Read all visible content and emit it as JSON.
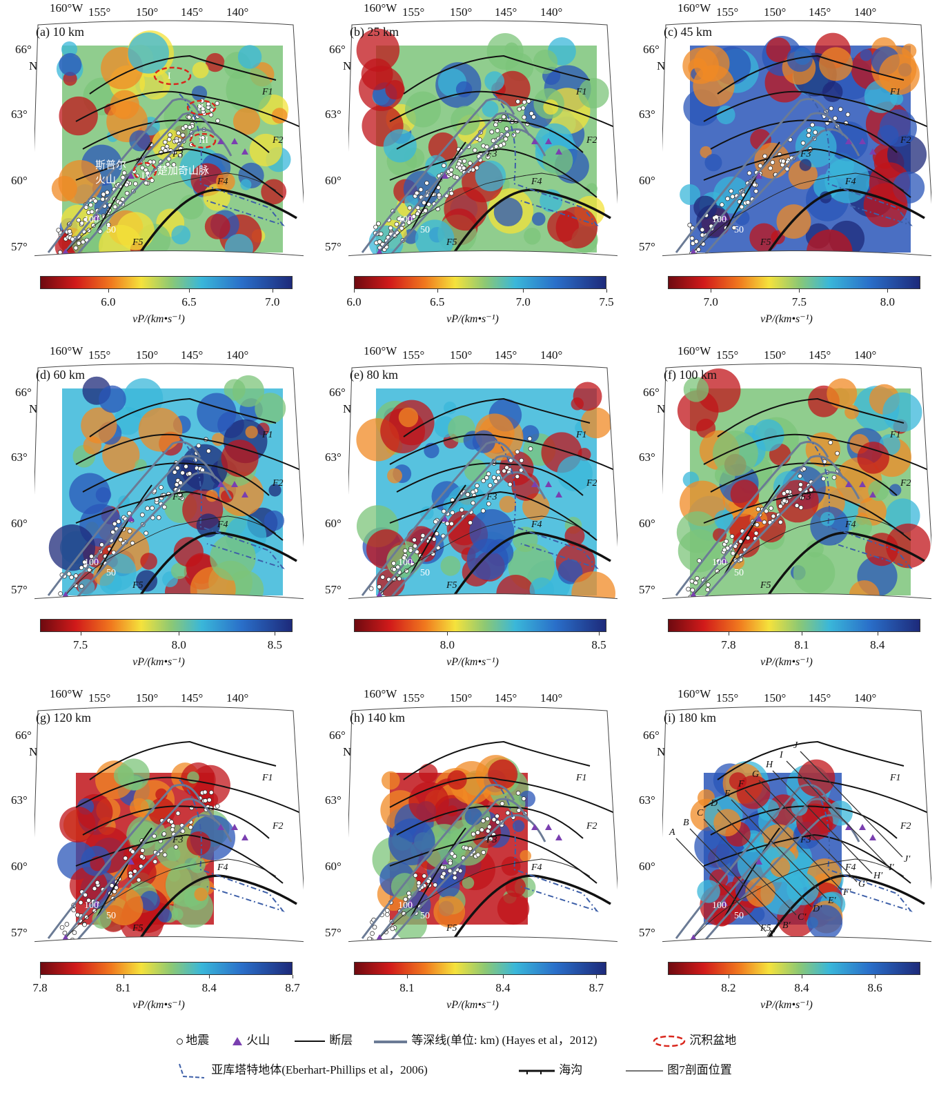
{
  "axes": {
    "lon_labels": [
      "160°W",
      "155°",
      "150°",
      "145°",
      "140°"
    ],
    "lat_labels": [
      "66°",
      "63°",
      "60°",
      "57°"
    ],
    "n_label": "N",
    "unit_label": "vP/(km•s⁻¹)"
  },
  "panels": [
    {
      "id": "a",
      "title": "(a) 10 km",
      "ticks": [
        "6.0",
        "6.5",
        "7.0"
      ],
      "ramp": "rb"
    },
    {
      "id": "b",
      "title": "(b) 25 km",
      "ticks": [
        "6.0",
        "6.5",
        "7.0",
        "7.5"
      ],
      "ramp": "rb"
    },
    {
      "id": "c",
      "title": "(c) 45 km",
      "ticks": [
        "7.0",
        "7.5",
        "8.0"
      ],
      "ramp": "rb"
    },
    {
      "id": "d",
      "title": "(d) 60 km",
      "ticks": [
        "7.5",
        "8.0",
        "8.5"
      ],
      "ramp": "rb"
    },
    {
      "id": "e",
      "title": "(e) 80 km",
      "ticks": [
        "8.0",
        "8.5"
      ],
      "ramp": "rb"
    },
    {
      "id": "f",
      "title": "(f) 100 km",
      "ticks": [
        "7.8",
        "8.1",
        "8.4"
      ],
      "ramp": "rb"
    },
    {
      "id": "g",
      "title": "(g) 120 km",
      "ticks": [
        "7.8",
        "8.1",
        "8.4",
        "8.7"
      ],
      "ramp": "rb"
    },
    {
      "id": "h",
      "title": "(h) 140 km",
      "ticks": [
        "8.1",
        "8.4",
        "8.7"
      ],
      "ramp": "rb"
    },
    {
      "id": "i",
      "title": "(i) 180 km",
      "ticks": [
        "8.2",
        "8.4",
        "8.6"
      ],
      "ramp": "rb"
    }
  ],
  "map_labels": {
    "faults": [
      "F1",
      "F2",
      "F3",
      "F4",
      "F5"
    ],
    "basins": [
      "I",
      "II",
      "III",
      "IV"
    ],
    "text_spurr": "斯普尔火山",
    "text_chugach": "楚加奇山脉",
    "contours": [
      "100",
      "50"
    ],
    "profiles_start": [
      "A",
      "B",
      "C",
      "D",
      "E",
      "F",
      "G",
      "H",
      "I",
      "J"
    ],
    "profiles_end": [
      "A′",
      "B′",
      "C′",
      "D′",
      "E′",
      "F′",
      "G′",
      "H′",
      "I′",
      "J′"
    ]
  },
  "legend": {
    "earthquake": "地震",
    "volcano": "火山",
    "fault": "断层",
    "contour": "等深线(单位: km) (Hayes et al，2012)",
    "basin": "沉积盆地",
    "yakutat": "亚库塔特地体(Eberhart-Phillips et al，2006)",
    "trench": "海沟",
    "profile": "图7剖面位置"
  },
  "colors": {
    "red": "#c0141a",
    "orange": "#f08a24",
    "yellow": "#f3e23a",
    "green": "#7cc47a",
    "cyan": "#3ab7d9",
    "blue": "#2a56b8",
    "darkblue": "#1d2a7a",
    "contour": "#6b7b95",
    "yakutat": "#3d5fa8",
    "volcano": "#7a3fb0",
    "basin": "#d9261c"
  }
}
